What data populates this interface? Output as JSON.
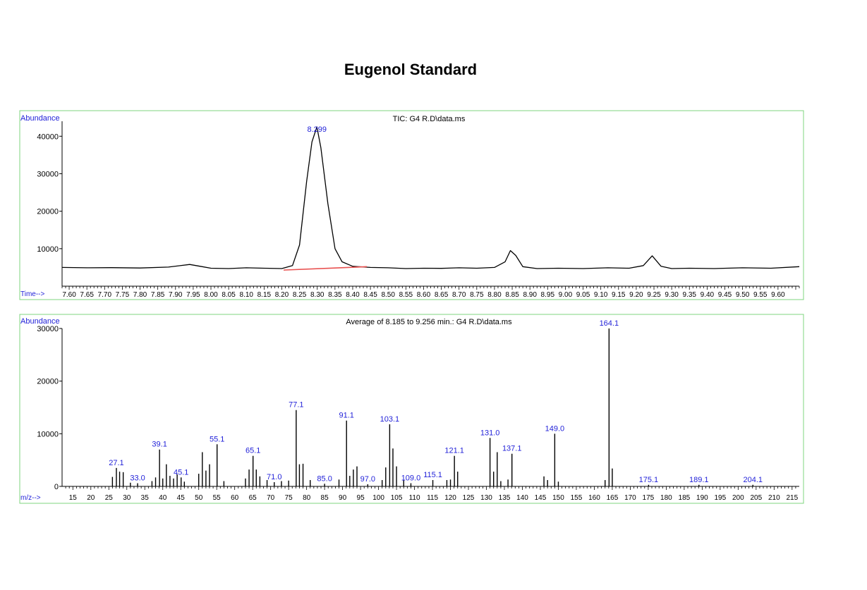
{
  "page": {
    "title": "Eugenol Standard"
  },
  "chart_data": [
    {
      "type": "line",
      "title": "TIC: G4 R.D\\data.ms",
      "ylabel": "Abundance",
      "xlabel": "Time-->",
      "ylim": [
        0,
        44000
      ],
      "xlim": [
        7.58,
        9.66
      ],
      "yticks": [
        10000,
        20000,
        30000,
        40000
      ],
      "xticks": [
        "7.60",
        "7.65",
        "7.70",
        "7.75",
        "7.80",
        "7.85",
        "7.90",
        "7.95",
        "8.00",
        "8.05",
        "8.10",
        "8.15",
        "8.20",
        "8.25",
        "8.30",
        "8.35",
        "8.40",
        "8.45",
        "8.50",
        "8.55",
        "8.60",
        "8.65",
        "8.70",
        "8.75",
        "8.80",
        "8.85",
        "8.90",
        "8.95",
        "9.00",
        "9.05",
        "9.10",
        "9.15",
        "9.20",
        "9.25",
        "9.30",
        "9.35",
        "9.40",
        "9.45",
        "9.50",
        "9.55",
        "9.60"
      ],
      "peak_label": "8.299",
      "series": [
        {
          "x": [
            7.58,
            7.65,
            7.72,
            7.8,
            7.88,
            7.94,
            7.97,
            8.0,
            8.05,
            8.1,
            8.15,
            8.2,
            8.23,
            8.25,
            8.27,
            8.285,
            8.299,
            8.31,
            8.33,
            8.35,
            8.37,
            8.4,
            8.45,
            8.5,
            8.55,
            8.6,
            8.65,
            8.7,
            8.75,
            8.8,
            8.83,
            8.845,
            8.86,
            8.88,
            8.92,
            8.98,
            9.05,
            9.12,
            9.18,
            9.22,
            9.245,
            9.27,
            9.3,
            9.35,
            9.42,
            9.5,
            9.58,
            9.66
          ],
          "y": [
            5000,
            4900,
            4950,
            4850,
            5100,
            5800,
            5300,
            4800,
            4700,
            4900,
            4800,
            4700,
            5500,
            11000,
            28000,
            38500,
            42500,
            37000,
            22000,
            10000,
            6500,
            5300,
            5000,
            4900,
            4700,
            4800,
            4750,
            4900,
            4800,
            5000,
            6500,
            9500,
            8200,
            5200,
            4700,
            4800,
            4700,
            4900,
            4800,
            5500,
            8100,
            5300,
            4700,
            4800,
            4700,
            4900,
            4800,
            5200
          ]
        }
      ],
      "baseline": {
        "x": [
          8.205,
          8.44
        ],
        "y": [
          4300,
          5200
        ],
        "color": "#e8504f"
      },
      "line_color": "#000000",
      "frame_color": "#7fd47f",
      "label_color": "#1f1fd8"
    },
    {
      "type": "bar",
      "title": "Average of 8.185 to 9.256 min.: G4 R.D\\data.ms",
      "ylabel": "Abundance",
      "xlabel": "m/z-->",
      "ylim": [
        0,
        30000
      ],
      "xlim": [
        12,
        217
      ],
      "yticks": [
        0,
        10000,
        20000,
        30000
      ],
      "xticks": [
        15,
        20,
        25,
        30,
        35,
        40,
        45,
        50,
        55,
        60,
        65,
        70,
        75,
        80,
        85,
        90,
        95,
        100,
        105,
        110,
        115,
        120,
        125,
        130,
        135,
        140,
        145,
        150,
        155,
        160,
        165,
        170,
        175,
        180,
        185,
        190,
        195,
        200,
        205,
        210,
        215
      ],
      "x": [
        26,
        27.1,
        28,
        29,
        31,
        33.0,
        37,
        38,
        39.1,
        40,
        41,
        42,
        43,
        44,
        45.1,
        46,
        50,
        51,
        52,
        53,
        55.1,
        57,
        63,
        64,
        65.1,
        66,
        67,
        69,
        71.0,
        73,
        75,
        77.1,
        78,
        79,
        81,
        85.0,
        89,
        91.1,
        92,
        93,
        94,
        97.0,
        101,
        102,
        103.1,
        104,
        105,
        107,
        109.0,
        115.1,
        119,
        120,
        121.1,
        122,
        131.0,
        132,
        133,
        134,
        136,
        137.1,
        146,
        147,
        149.0,
        150,
        163,
        164.1,
        165,
        175.1,
        189.1,
        204.1
      ],
      "y": [
        1800,
        3500,
        2800,
        2700,
        700,
        600,
        1000,
        1700,
        7000,
        1500,
        4200,
        2000,
        1500,
        2300,
        1700,
        900,
        2400,
        6500,
        3000,
        4200,
        8000,
        1000,
        1500,
        3200,
        5800,
        3200,
        1900,
        1200,
        800,
        1000,
        1100,
        14500,
        4200,
        4300,
        1200,
        500,
        1300,
        12500,
        2000,
        3200,
        3800,
        400,
        1200,
        3600,
        11800,
        7200,
        3800,
        1200,
        600,
        1200,
        1200,
        1300,
        5800,
        2800,
        9200,
        2800,
        6500,
        1000,
        1300,
        6200,
        1900,
        1200,
        10000,
        900,
        1200,
        30000,
        3400,
        300,
        300,
        300
      ],
      "peak_labels": [
        {
          "mz": 27.1,
          "text": "27.1"
        },
        {
          "mz": 33.0,
          "text": "33.0"
        },
        {
          "mz": 39.1,
          "text": "39.1"
        },
        {
          "mz": 45.1,
          "text": "45.1"
        },
        {
          "mz": 55.1,
          "text": "55.1"
        },
        {
          "mz": 65.1,
          "text": "65.1"
        },
        {
          "mz": 71.0,
          "text": "71.0"
        },
        {
          "mz": 77.1,
          "text": "77.1"
        },
        {
          "mz": 85.0,
          "text": "85.0"
        },
        {
          "mz": 91.1,
          "text": "91.1"
        },
        {
          "mz": 97.0,
          "text": "97.0"
        },
        {
          "mz": 103.1,
          "text": "103.1"
        },
        {
          "mz": 109.0,
          "text": "109.0"
        },
        {
          "mz": 115.1,
          "text": "115.1"
        },
        {
          "mz": 121.1,
          "text": "121.1"
        },
        {
          "mz": 131.0,
          "text": "131.0"
        },
        {
          "mz": 137.1,
          "text": "137.1"
        },
        {
          "mz": 149.0,
          "text": "149.0"
        },
        {
          "mz": 164.1,
          "text": "164.1"
        },
        {
          "mz": 175.1,
          "text": "175.1"
        },
        {
          "mz": 189.1,
          "text": "189.1"
        },
        {
          "mz": 204.1,
          "text": "204.1"
        }
      ],
      "bar_color": "#000000",
      "frame_color": "#7fd47f",
      "label_color": "#1f1fd8"
    }
  ]
}
